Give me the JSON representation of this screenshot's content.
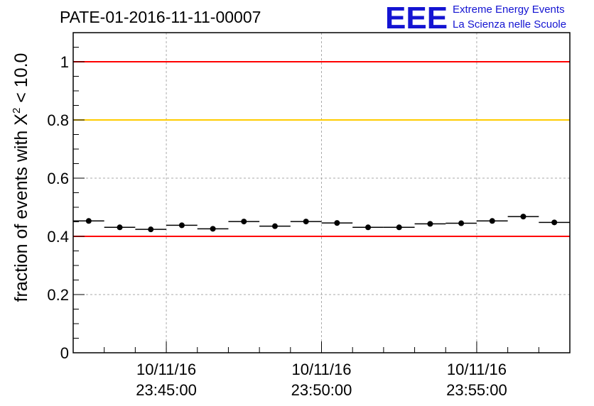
{
  "title": "PATE-01-2016-11-11-00007",
  "logo": {
    "mark": "EEE",
    "line1": "Extreme Energy Events",
    "line2": "La Scienza nelle Scuole",
    "color": "#1414d2"
  },
  "axes": {
    "ylabel_main": "fraction of events with ",
    "ylabel_symbol": "X",
    "ylabel_exp": "2",
    "ylabel_tail": " < 10.0",
    "ytick_labels": [
      "0",
      "0.2",
      "0.4",
      "0.6",
      "0.8",
      "1"
    ],
    "xtick_labels": [
      {
        "date": "10/11/16",
        "time": "23:45:00"
      },
      {
        "date": "10/11/16",
        "time": "23:50:00"
      },
      {
        "date": "10/11/16",
        "time": "23:55:00"
      }
    ]
  },
  "chart_data": {
    "type": "scatter",
    "x_unit": "time (10/11/16)",
    "ylim": [
      0,
      1.1
    ],
    "grid": true,
    "x_start": "23:42:00",
    "x_end": "23:58:00",
    "x_ticks": [
      "23:45:00",
      "23:50:00",
      "23:55:00"
    ],
    "bin_width_seconds": 60,
    "points": [
      {
        "x": "23:42:30",
        "y": 0.453
      },
      {
        "x": "23:43:30",
        "y": 0.431
      },
      {
        "x": "23:44:30",
        "y": 0.424
      },
      {
        "x": "23:45:30",
        "y": 0.438
      },
      {
        "x": "23:46:30",
        "y": 0.426
      },
      {
        "x": "23:47:30",
        "y": 0.451
      },
      {
        "x": "23:48:30",
        "y": 0.435
      },
      {
        "x": "23:49:30",
        "y": 0.451
      },
      {
        "x": "23:50:30",
        "y": 0.446
      },
      {
        "x": "23:51:30",
        "y": 0.431
      },
      {
        "x": "23:52:30",
        "y": 0.431
      },
      {
        "x": "23:53:30",
        "y": 0.443
      },
      {
        "x": "23:54:30",
        "y": 0.445
      },
      {
        "x": "23:55:30",
        "y": 0.453
      },
      {
        "x": "23:56:30",
        "y": 0.468
      },
      {
        "x": "23:57:30",
        "y": 0.448
      }
    ],
    "reference_lines": [
      {
        "y": 1.0,
        "color": "#ff0000"
      },
      {
        "y": 0.8,
        "color": "#ffcc00"
      },
      {
        "y": 0.4,
        "color": "#ff0000"
      }
    ]
  }
}
